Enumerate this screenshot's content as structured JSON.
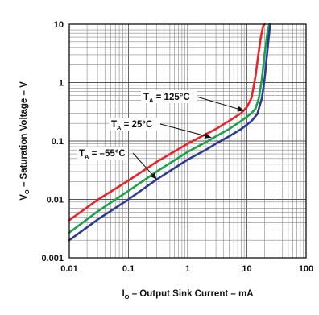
{
  "chart_data": {
    "type": "line",
    "title": "",
    "xlabel": {
      "main": "I",
      "sub": "O",
      "rest": " – Output Sink Current – mA"
    },
    "ylabel": {
      "main": "V",
      "sub": "O",
      "rest": " – Saturation Voltage – V"
    },
    "x_scale": "log",
    "y_scale": "log",
    "xlim": [
      0.01,
      100
    ],
    "ylim": [
      0.001,
      10
    ],
    "grid": true,
    "x_ticks": [
      {
        "value": 0.01,
        "label": "0.01"
      },
      {
        "value": 0.1,
        "label": "0.1"
      },
      {
        "value": 1,
        "label": "1"
      },
      {
        "value": 10,
        "label": "10"
      },
      {
        "value": 100,
        "label": "100"
      }
    ],
    "y_ticks": [
      {
        "value": 0.001,
        "label": "0.001"
      },
      {
        "value": 0.01,
        "label": "0.01"
      },
      {
        "value": 0.1,
        "label": "0.1"
      },
      {
        "value": 1,
        "label": "1"
      },
      {
        "value": 10,
        "label": "10"
      }
    ],
    "series": [
      {
        "color": "#e8232a",
        "x": [
          0.01,
          0.03,
          0.1,
          0.3,
          1,
          2,
          3,
          5,
          8,
          10,
          12,
          14,
          15,
          16,
          17,
          18,
          19,
          20
        ],
        "y": [
          0.0044,
          0.0098,
          0.021,
          0.044,
          0.09,
          0.13,
          0.16,
          0.22,
          0.3,
          0.38,
          0.55,
          1.3,
          2.2,
          3.6,
          5.5,
          7.5,
          9.5,
          10
        ]
      },
      {
        "color": "#1aa14a",
        "x": [
          0.01,
          0.03,
          0.1,
          0.3,
          1,
          2,
          3,
          5,
          8,
          10,
          12,
          14,
          16,
          18,
          19,
          20,
          21,
          22,
          23,
          24
        ],
        "y": [
          0.0027,
          0.0062,
          0.014,
          0.03,
          0.065,
          0.095,
          0.12,
          0.16,
          0.22,
          0.26,
          0.3,
          0.36,
          0.55,
          1.2,
          2.0,
          3.2,
          4.6,
          6.5,
          8.5,
          10
        ]
      },
      {
        "color": "#2e3a8f",
        "x": [
          0.01,
          0.03,
          0.1,
          0.3,
          1,
          2,
          3,
          5,
          8,
          10,
          12,
          15,
          18,
          20,
          21,
          22,
          23,
          24,
          25
        ],
        "y": [
          0.002,
          0.0045,
          0.01,
          0.022,
          0.048,
          0.07,
          0.09,
          0.12,
          0.16,
          0.19,
          0.22,
          0.29,
          0.55,
          1.2,
          2.0,
          3.2,
          5.0,
          7.5,
          10
        ]
      }
    ],
    "annotations": [
      {
        "prefix": "T",
        "sub": "A",
        "text": " = 125°C",
        "target_x": 9,
        "target_y": 0.33
      },
      {
        "prefix": "T",
        "sub": "A",
        "text": " = 25°C",
        "target_x": 2.5,
        "target_y": 0.115
      },
      {
        "prefix": "T",
        "sub": "A",
        "text": " = –55°C",
        "target_x": 0.3,
        "target_y": 0.022
      }
    ]
  }
}
